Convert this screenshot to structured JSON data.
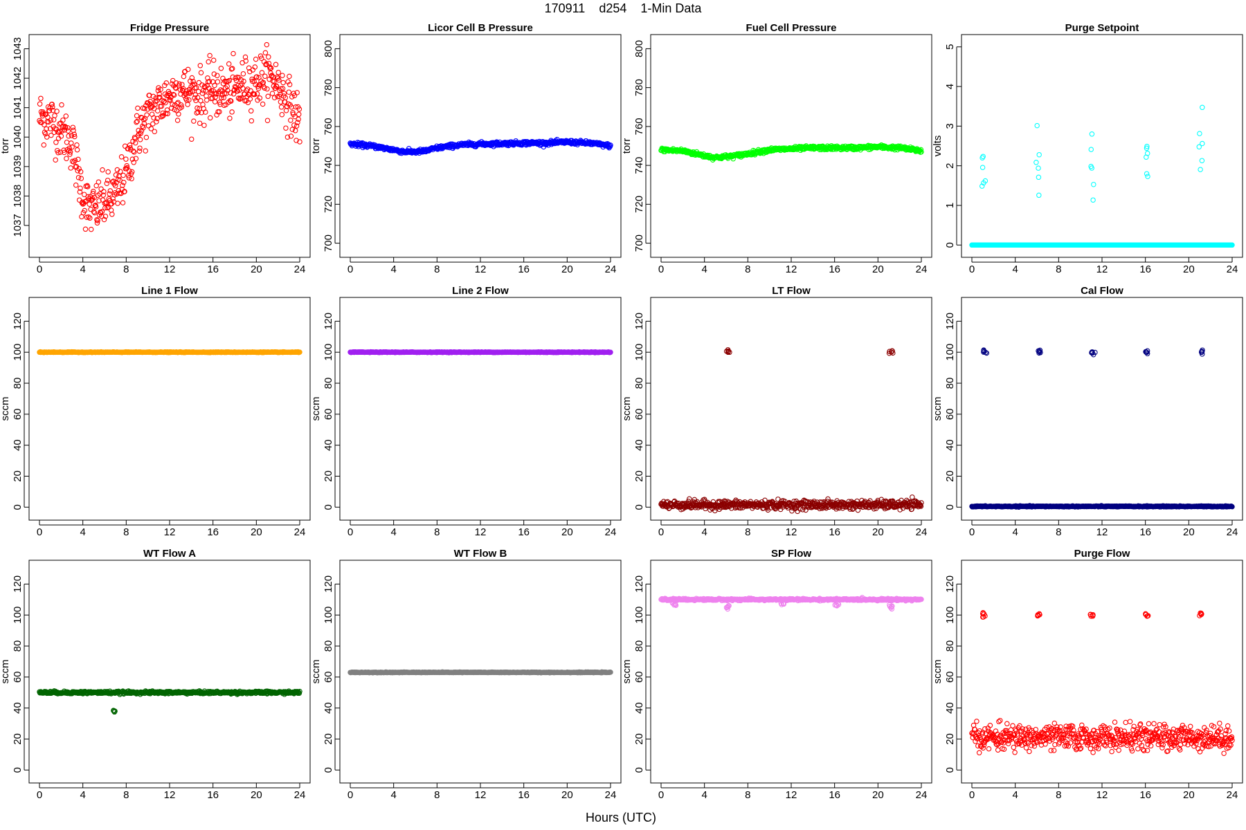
{
  "figure": {
    "title": "170911    d254    1-Min Data",
    "xlabel": "Hours (UTC)"
  },
  "chart_data": [
    {
      "type": "scatter",
      "title": "Fridge Pressure",
      "ylabel": "torr",
      "color": "#ff0000",
      "xlim": [
        0,
        24
      ],
      "ylim": [
        1036.2,
        1043.2
      ],
      "xticks": [
        0,
        4,
        8,
        12,
        16,
        20,
        24
      ],
      "yticks": [
        1037,
        1038,
        1039,
        1040,
        1041,
        1042,
        1043
      ],
      "x": [
        0,
        1,
        2,
        3,
        4,
        4.5,
        5,
        5.5,
        6,
        7,
        8,
        9,
        10,
        11,
        12,
        13,
        14,
        15,
        16,
        17,
        18,
        19,
        20,
        21,
        22,
        23,
        24
      ],
      "y": [
        1040.7,
        1040.6,
        1040.2,
        1039.8,
        1038,
        1037.6,
        1037.5,
        1037.7,
        1037.8,
        1038,
        1038.8,
        1040.1,
        1040.7,
        1041.1,
        1041.4,
        1041.6,
        1041.5,
        1041.4,
        1041.6,
        1041.5,
        1041.6,
        1041.8,
        1041.9,
        1042.1,
        1041.8,
        1041.1,
        1040.5
      ],
      "noise": 0.45
    },
    {
      "type": "scatter",
      "title": "Licor Cell B Pressure",
      "ylabel": "torr",
      "color": "#0000ff",
      "xlim": [
        0,
        24
      ],
      "ylim": [
        697,
        803
      ],
      "xticks": [
        0,
        4,
        8,
        12,
        16,
        20,
        24
      ],
      "yticks": [
        700,
        720,
        740,
        760,
        780,
        800
      ],
      "x": [
        0,
        2,
        4,
        5,
        6,
        7,
        8,
        10,
        12,
        14,
        16,
        18,
        20,
        22,
        24
      ],
      "y": [
        751,
        750,
        748,
        747,
        747,
        747.5,
        749,
        750.5,
        751,
        751.2,
        751.5,
        751.5,
        752,
        751.5,
        750
      ],
      "noise": 0.5
    },
    {
      "type": "scatter",
      "title": "Fuel Cell Pressure",
      "ylabel": "torr",
      "color": "#00ff00",
      "xlim": [
        0,
        24
      ],
      "ylim": [
        697,
        803
      ],
      "xticks": [
        0,
        4,
        8,
        12,
        16,
        20,
        24
      ],
      "yticks": [
        700,
        720,
        740,
        760,
        780,
        800
      ],
      "x": [
        0,
        2,
        4,
        5,
        6,
        7,
        8,
        10,
        12,
        14,
        16,
        18,
        20,
        22,
        24
      ],
      "y": [
        748,
        747.5,
        745,
        744,
        744.5,
        745,
        746,
        748,
        748.5,
        749,
        749,
        749,
        749.5,
        749,
        747.5
      ],
      "noise": 0.5
    },
    {
      "type": "scatter",
      "title": "Purge Setpoint",
      "ylabel": "volts",
      "color": "#00ffff",
      "xlim": [
        0,
        24
      ],
      "ylim": [
        -0.1,
        5.1
      ],
      "xticks": [
        0,
        4,
        8,
        12,
        16,
        20,
        24
      ],
      "yticks": [
        0,
        1,
        2,
        3,
        4,
        5
      ],
      "x": [
        0,
        24
      ],
      "y": [
        0,
        0
      ],
      "noise": 0,
      "spikes": [
        {
          "x": 1.1,
          "y": 2.3
        },
        {
          "x": 6.1,
          "y": 2.32
        },
        {
          "x": 11.1,
          "y": 2.3
        },
        {
          "x": 16.1,
          "y": 2.32
        },
        {
          "x": 21.1,
          "y": 2.3
        }
      ]
    },
    {
      "type": "scatter",
      "title": "Line 1 Flow",
      "ylabel": "sccm",
      "color": "#ffa500",
      "xlim": [
        0,
        24
      ],
      "ylim": [
        -3,
        130
      ],
      "xticks": [
        0,
        4,
        8,
        12,
        16,
        20,
        24
      ],
      "yticks": [
        0,
        20,
        40,
        60,
        80,
        100,
        120
      ],
      "x": [
        0,
        24
      ],
      "y": [
        100,
        100
      ],
      "noise": 0.1
    },
    {
      "type": "scatter",
      "title": "Line 2 Flow",
      "ylabel": "sccm",
      "color": "#a020f0",
      "xlim": [
        0,
        24
      ],
      "ylim": [
        -3,
        130
      ],
      "xticks": [
        0,
        4,
        8,
        12,
        16,
        20,
        24
      ],
      "yticks": [
        0,
        20,
        40,
        60,
        80,
        100,
        120
      ],
      "x": [
        0,
        24
      ],
      "y": [
        100,
        100
      ],
      "noise": 0.1
    },
    {
      "type": "scatter",
      "title": "LT Flow",
      "ylabel": "sccm",
      "color": "#8b0000",
      "xlim": [
        0,
        24
      ],
      "ylim": [
        -3,
        130
      ],
      "xticks": [
        0,
        4,
        8,
        12,
        16,
        20,
        24
      ],
      "yticks": [
        0,
        20,
        40,
        60,
        80,
        100,
        120
      ],
      "x": [
        0,
        24
      ],
      "y": [
        1.5,
        1.5
      ],
      "noise": 1.4,
      "spikes": [
        {
          "x": 6.2,
          "y": 100
        },
        {
          "x": 21.2,
          "y": 100
        }
      ]
    },
    {
      "type": "scatter",
      "title": "Cal Flow",
      "ylabel": "sccm",
      "color": "#000080",
      "xlim": [
        0,
        24
      ],
      "ylim": [
        -3,
        130
      ],
      "xticks": [
        0,
        4,
        8,
        12,
        16,
        20,
        24
      ],
      "yticks": [
        0,
        20,
        40,
        60,
        80,
        100,
        120
      ],
      "x": [
        0,
        24
      ],
      "y": [
        0.5,
        0.5
      ],
      "noise": 0.15,
      "spikes": [
        {
          "x": 1.2,
          "y": 100
        },
        {
          "x": 6.2,
          "y": 100
        },
        {
          "x": 11.2,
          "y": 100
        },
        {
          "x": 16.2,
          "y": 100
        },
        {
          "x": 21.2,
          "y": 100
        }
      ]
    },
    {
      "type": "scatter",
      "title": "WT Flow A",
      "ylabel": "sccm",
      "color": "#006400",
      "xlim": [
        0,
        24
      ],
      "ylim": [
        -3,
        130
      ],
      "xticks": [
        0,
        4,
        8,
        12,
        16,
        20,
        24
      ],
      "yticks": [
        0,
        20,
        40,
        60,
        80,
        100,
        120
      ],
      "x": [
        0,
        24
      ],
      "y": [
        50,
        50
      ],
      "noise": 0.4,
      "spikes": [
        {
          "x": 6.8,
          "y": 38
        }
      ]
    },
    {
      "type": "scatter",
      "title": "WT Flow B",
      "ylabel": "sccm",
      "color": "#808080",
      "xlim": [
        0,
        24
      ],
      "ylim": [
        -3,
        130
      ],
      "xticks": [
        0,
        4,
        8,
        12,
        16,
        20,
        24
      ],
      "yticks": [
        0,
        20,
        40,
        60,
        80,
        100,
        120
      ],
      "x": [
        0,
        24
      ],
      "y": [
        63,
        63
      ],
      "noise": 0.1
    },
    {
      "type": "scatter",
      "title": "SP Flow",
      "ylabel": "sccm",
      "color": "#ee82ee",
      "xlim": [
        0,
        24
      ],
      "ylim": [
        -3,
        130
      ],
      "xticks": [
        0,
        4,
        8,
        12,
        16,
        20,
        24
      ],
      "yticks": [
        0,
        20,
        40,
        60,
        80,
        100,
        120
      ],
      "x": [
        0,
        24
      ],
      "y": [
        110,
        110
      ],
      "noise": 0.3,
      "spikes": [
        {
          "x": 1.2,
          "y": 107
        },
        {
          "x": 6.2,
          "y": 105
        },
        {
          "x": 11.2,
          "y": 107
        },
        {
          "x": 16.2,
          "y": 107
        },
        {
          "x": 21.2,
          "y": 105
        }
      ]
    },
    {
      "type": "scatter",
      "title": "Purge Flow",
      "ylabel": "sccm",
      "color": "#ff0000",
      "xlim": [
        0,
        24
      ],
      "ylim": [
        -3,
        130
      ],
      "xticks": [
        0,
        4,
        8,
        12,
        16,
        20,
        24
      ],
      "yticks": [
        0,
        20,
        40,
        60,
        80,
        100,
        120
      ],
      "x": [
        0,
        24
      ],
      "y": [
        21,
        21
      ],
      "noise": 4,
      "spikes": [
        {
          "x": 1.1,
          "y": 100
        },
        {
          "x": 6.1,
          "y": 100
        },
        {
          "x": 11.1,
          "y": 100
        },
        {
          "x": 16.1,
          "y": 100
        },
        {
          "x": 21.1,
          "y": 100
        }
      ]
    }
  ]
}
